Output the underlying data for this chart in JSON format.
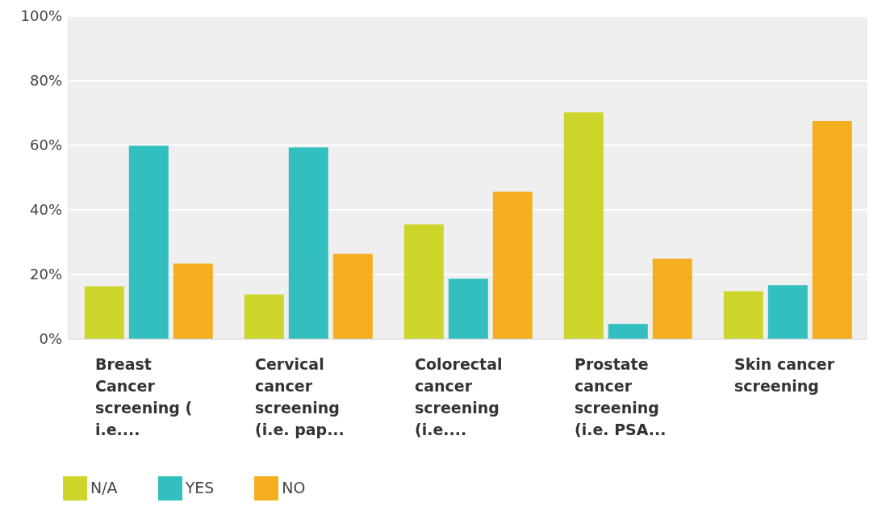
{
  "chart_data": {
    "type": "bar",
    "categories": [
      "Breast Cancer screening ( i.e....",
      "Cervical cancer screening (i.e. pap...",
      "Colorectal cancer screening (i.e....",
      "Prostate cancer screening (i.e. PSA...",
      "Skin cancer screening"
    ],
    "series": [
      {
        "name": "N/A",
        "color": "#cdd42a",
        "values": [
          16.3,
          13.8,
          35.5,
          70.2,
          14.8
        ]
      },
      {
        "name": "YES",
        "color": "#33bfbf",
        "values": [
          59.9,
          59.4,
          18.7,
          4.7,
          16.7
        ]
      },
      {
        "name": "NO",
        "color": "#f5ae20",
        "values": [
          23.4,
          26.4,
          45.6,
          24.9,
          67.5
        ]
      }
    ],
    "ylim": [
      0,
      100
    ],
    "yticks": [
      {
        "value": 0,
        "label": "0%"
      },
      {
        "value": 20,
        "label": "20%"
      },
      {
        "value": 40,
        "label": "40%"
      },
      {
        "value": 60,
        "label": "60%"
      },
      {
        "value": 80,
        "label": "80%"
      },
      {
        "value": 100,
        "label": "100%"
      }
    ],
    "grid": "y",
    "legend": "bottom left"
  }
}
